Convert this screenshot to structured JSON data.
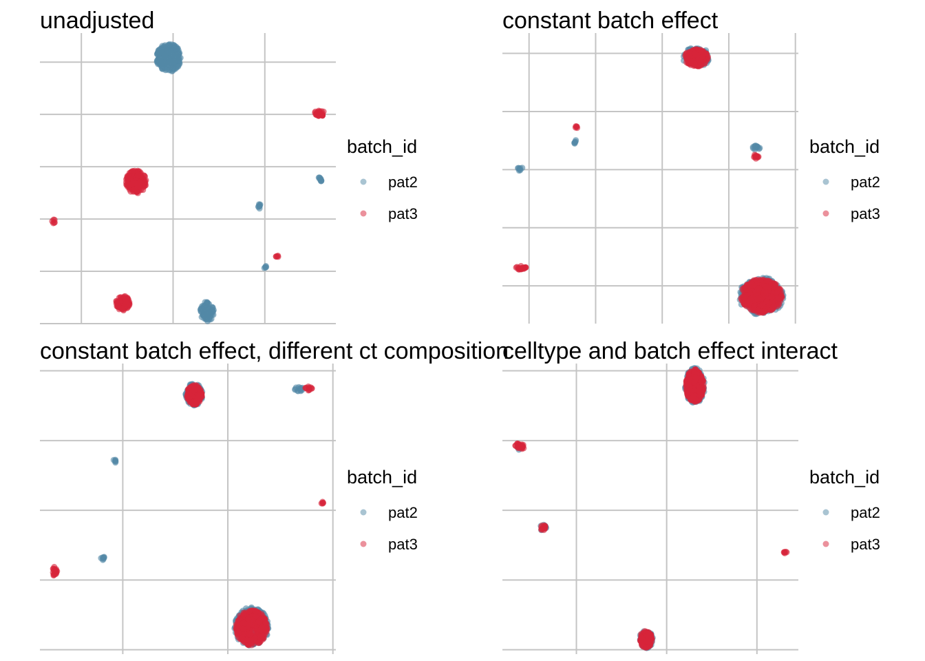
{
  "colors": {
    "pat2": "#5389a6",
    "pat3": "#d7243a",
    "grid": "#c4c4c4"
  },
  "chart_data": [
    {
      "type": "scatter",
      "title": "unadjusted",
      "xlabel": "",
      "ylabel": "",
      "grid": true,
      "legend": {
        "title": "batch_id",
        "position": "right",
        "entries": [
          "pat2",
          "pat3"
        ]
      },
      "xlim": [
        0,
        100
      ],
      "ylim": [
        0,
        100
      ],
      "x_grid": [
        14,
        45,
        76
      ],
      "y_grid": [
        0,
        18,
        36,
        54,
        72,
        90
      ],
      "series": [
        {
          "name": "pat2",
          "clusters": [
            {
              "x": 43.5,
              "y": 91.5,
              "spread": [
                4.2,
                4.8
              ],
              "n": 260
            },
            {
              "x": 56.5,
              "y": 4.2,
              "spread": [
                2.3,
                3.4
              ],
              "n": 100
            },
            {
              "x": 94.6,
              "y": 49.5,
              "spread": [
                0.7,
                0.9
              ],
              "n": 10
            },
            {
              "x": 74.2,
              "y": 40.4,
              "spread": [
                0.6,
                0.8
              ],
              "n": 8
            },
            {
              "x": 76.1,
              "y": 19.5,
              "spread": [
                0.4,
                0.5
              ],
              "n": 5
            }
          ]
        },
        {
          "name": "pat3",
          "clusters": [
            {
              "x": 32.5,
              "y": 48.8,
              "spread": [
                3.4,
                4.0
              ],
              "n": 180
            },
            {
              "x": 28.0,
              "y": 7.1,
              "spread": [
                2.3,
                2.6
              ],
              "n": 90
            },
            {
              "x": 94.6,
              "y": 72.5,
              "spread": [
                1.7,
                1.1
              ],
              "n": 28
            },
            {
              "x": 4.6,
              "y": 35.3,
              "spread": [
                0.6,
                0.8
              ],
              "n": 6
            },
            {
              "x": 80.2,
              "y": 23.1,
              "spread": [
                0.5,
                0.6
              ],
              "n": 5
            }
          ]
        }
      ]
    },
    {
      "type": "scatter",
      "title": "constant batch effect",
      "xlabel": "",
      "ylabel": "",
      "grid": true,
      "legend": {
        "title": "batch_id",
        "position": "right",
        "entries": [
          "pat2",
          "pat3"
        ]
      },
      "xlim": [
        0,
        100
      ],
      "ylim": [
        0,
        100
      ],
      "x_grid": [
        9,
        31.5,
        54,
        76.5,
        99
      ],
      "y_grid": [
        13,
        33,
        53,
        73,
        93
      ],
      "series": [
        {
          "name": "pat2",
          "clusters": [
            {
              "x": 65.5,
              "y": 91.8,
              "spread": [
                4.6,
                3.4
              ],
              "n": 110
            },
            {
              "x": 87.5,
              "y": 9.5,
              "spread": [
                7.6,
                6.4
              ],
              "n": 240
            },
            {
              "x": 85.8,
              "y": 60.5,
              "spread": [
                1.2,
                0.9
              ],
              "n": 14
            },
            {
              "x": 24.8,
              "y": 62.5,
              "spread": [
                0.6,
                0.7
              ],
              "n": 6
            },
            {
              "x": 6.0,
              "y": 53.2,
              "spread": [
                1.0,
                0.7
              ],
              "n": 8
            }
          ]
        },
        {
          "name": "pat3",
          "clusters": [
            {
              "x": 65.5,
              "y": 91.5,
              "spread": [
                4.0,
                3.0
              ],
              "n": 180
            },
            {
              "x": 87.5,
              "y": 9.5,
              "spread": [
                7.0,
                5.8
              ],
              "n": 480
            },
            {
              "x": 85.8,
              "y": 57.5,
              "spread": [
                0.9,
                0.8
              ],
              "n": 12
            },
            {
              "x": 24.8,
              "y": 67.5,
              "spread": [
                0.5,
                0.5
              ],
              "n": 5
            },
            {
              "x": 6.2,
              "y": 19.3,
              "spread": [
                1.8,
                0.8
              ],
              "n": 24
            }
          ]
        }
      ]
    },
    {
      "type": "scatter",
      "title": "constant batch effect, different ct composition",
      "xlabel": "",
      "ylabel": "",
      "grid": true,
      "legend": {
        "title": "batch_id",
        "position": "right",
        "entries": [
          "pat2",
          "pat3"
        ]
      },
      "xlim": [
        0,
        100
      ],
      "ylim": [
        0,
        100
      ],
      "x_grid": [
        28,
        63.5,
        99
      ],
      "y_grid": [
        1.5,
        25.5,
        49.5,
        73.5,
        97.5
      ],
      "series": [
        {
          "name": "pat2",
          "clusters": [
            {
              "x": 52.0,
              "y": 89.4,
              "spread": [
                3.0,
                3.8
              ],
              "n": 110
            },
            {
              "x": 71.5,
              "y": 9.4,
              "spread": [
                5.8,
                6.7
              ],
              "n": 220
            },
            {
              "x": 87.5,
              "y": 91.2,
              "spread": [
                1.5,
                0.8
              ],
              "n": 14
            },
            {
              "x": 25.2,
              "y": 66.4,
              "spread": [
                0.6,
                0.7
              ],
              "n": 6
            },
            {
              "x": 21.3,
              "y": 32.8,
              "spread": [
                0.8,
                0.8
              ],
              "n": 8
            }
          ]
        },
        {
          "name": "pat3",
          "clusters": [
            {
              "x": 52.2,
              "y": 89.2,
              "spread": [
                2.6,
                3.4
              ],
              "n": 160
            },
            {
              "x": 71.5,
              "y": 9.1,
              "spread": [
                5.3,
                6.1
              ],
              "n": 420
            },
            {
              "x": 90.7,
              "y": 91.4,
              "spread": [
                1.2,
                0.7
              ],
              "n": 12
            },
            {
              "x": 95.3,
              "y": 52.3,
              "spread": [
                0.5,
                0.6
              ],
              "n": 5
            },
            {
              "x": 5.2,
              "y": 28.6,
              "spread": [
                0.8,
                2.2
              ],
              "n": 22
            }
          ]
        }
      ]
    },
    {
      "type": "scatter",
      "title": "celltype and batch effect interact",
      "xlabel": "",
      "ylabel": "",
      "grid": true,
      "legend": {
        "title": "batch_id",
        "position": "right",
        "entries": [
          "pat2",
          "pat3"
        ]
      },
      "xlim": [
        0,
        100
      ],
      "ylim": [
        0,
        100
      ],
      "x_grid": [
        25,
        55.5,
        86
      ],
      "y_grid": [
        1.5,
        25.5,
        49.5,
        73.5,
        97.5
      ],
      "series": [
        {
          "name": "pat2",
          "clusters": [
            {
              "x": 65.0,
              "y": 92.4,
              "spread": [
                3.4,
                6.1
              ],
              "n": 170
            },
            {
              "x": 48.5,
              "y": 5.1,
              "spread": [
                2.3,
                3.1
              ],
              "n": 80
            },
            {
              "x": 13.8,
              "y": 43.6,
              "spread": [
                1.0,
                1.3
              ],
              "n": 10
            },
            {
              "x": 6.0,
              "y": 71.0,
              "spread": [
                1.2,
                1.1
              ],
              "n": 6
            }
          ]
        },
        {
          "name": "pat3",
          "clusters": [
            {
              "x": 65.0,
              "y": 92.4,
              "spread": [
                3.0,
                5.7
              ],
              "n": 300
            },
            {
              "x": 48.5,
              "y": 5.1,
              "spread": [
                2.1,
                2.9
              ],
              "n": 130
            },
            {
              "x": 13.8,
              "y": 43.4,
              "spread": [
                0.8,
                1.1
              ],
              "n": 12
            },
            {
              "x": 5.9,
              "y": 71.6,
              "spread": [
                1.8,
                1.1
              ],
              "n": 28
            },
            {
              "x": 95.5,
              "y": 35.2,
              "spread": [
                0.6,
                0.6
              ],
              "n": 6
            }
          ]
        }
      ]
    }
  ]
}
